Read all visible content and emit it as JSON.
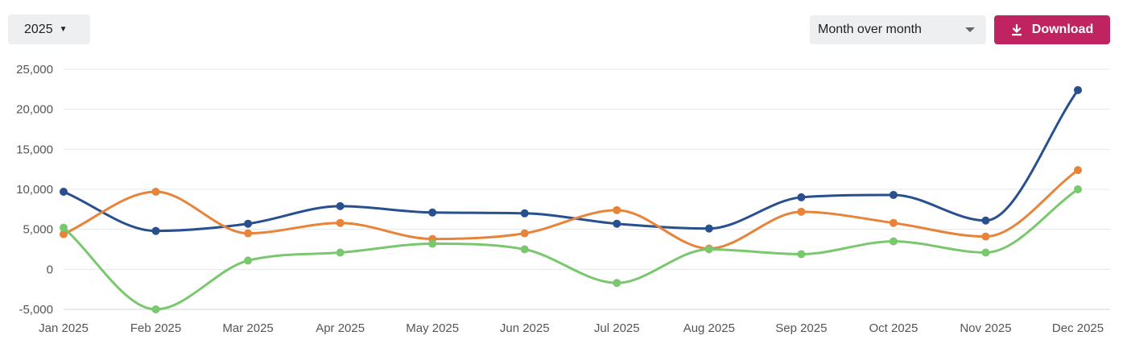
{
  "controls": {
    "year_label": "2025",
    "mode_label": "Month over month",
    "download_label": "Download",
    "download_icon": "download-icon",
    "accent": "#bf2461"
  },
  "chart_data": {
    "type": "line",
    "smooth": true,
    "categories": [
      "Jan 2025",
      "Feb 2025",
      "Mar 2025",
      "Apr 2025",
      "May 2025",
      "Jun 2025",
      "Jul 2025",
      "Aug 2025",
      "Sep 2025",
      "Oct 2025",
      "Nov 2025",
      "Dec 2025"
    ],
    "y_ticks": [
      "25,000",
      "20,000",
      "15,000",
      "10,000",
      "5,000",
      "0",
      "-5,000"
    ],
    "ylim": [
      -5000,
      25000
    ],
    "grid": true,
    "legend": "none",
    "series": [
      {
        "color": "#28508f",
        "values": [
          9700,
          4800,
          5700,
          7900,
          7100,
          7000,
          5700,
          5100,
          9000,
          9300,
          6100,
          22400
        ]
      },
      {
        "color": "#e8843a",
        "values": [
          4400,
          9700,
          4500,
          5800,
          3800,
          4500,
          7400,
          2600,
          7200,
          5800,
          4100,
          12400
        ]
      },
      {
        "color": "#7ac86e",
        "values": [
          5200,
          -5000,
          1100,
          2100,
          3200,
          2500,
          -1700,
          2500,
          1900,
          3500,
          2100,
          10000
        ]
      }
    ]
  }
}
